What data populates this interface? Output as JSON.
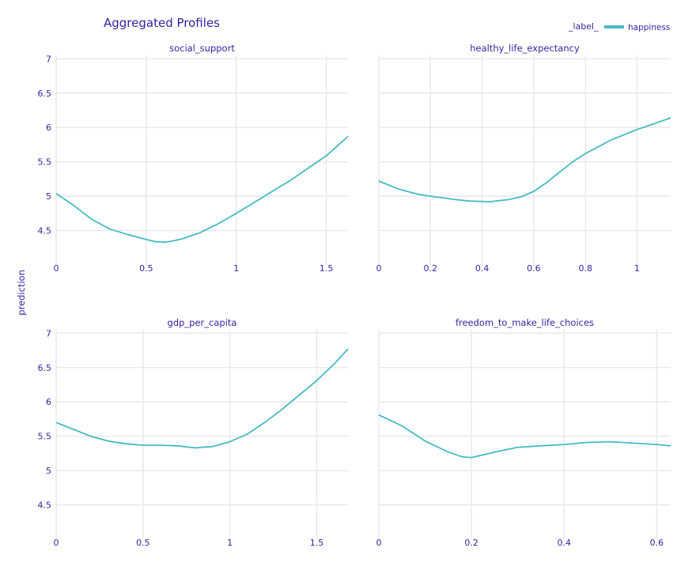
{
  "chart_data": {
    "type": "line",
    "title": "Aggregated Profiles",
    "ylabel": "prediction",
    "ylim": [
      4.0,
      7.05
    ],
    "yticks": [
      4.5,
      5,
      5.5,
      6,
      6.5,
      7
    ],
    "grid": true,
    "legend": {
      "title": "_label_",
      "placement": "top-right",
      "entries": [
        {
          "name": "happiness",
          "color": "#46bac2"
        }
      ]
    },
    "line_color": "#46bac2",
    "subplots": [
      {
        "title": "social_support",
        "xlim": [
          0,
          1.62
        ],
        "xticks": [
          0,
          0.5,
          1,
          1.5
        ],
        "x": [
          0,
          0.1,
          0.2,
          0.3,
          0.4,
          0.5,
          0.55,
          0.6,
          0.65,
          0.7,
          0.8,
          0.9,
          1.0,
          1.1,
          1.2,
          1.3,
          1.4,
          1.5,
          1.62
        ],
        "y": [
          5.04,
          4.86,
          4.66,
          4.52,
          4.44,
          4.37,
          4.34,
          4.33,
          4.35,
          4.38,
          4.47,
          4.6,
          4.75,
          4.91,
          5.07,
          5.23,
          5.41,
          5.59,
          5.87
        ]
      },
      {
        "title": "healthy_life_expectancy",
        "xlim": [
          0,
          1.13
        ],
        "xticks": [
          0,
          0.2,
          0.4,
          0.6,
          0.8,
          1
        ],
        "x": [
          0,
          0.08,
          0.15,
          0.2,
          0.3,
          0.35,
          0.43,
          0.5,
          0.55,
          0.6,
          0.65,
          0.7,
          0.75,
          0.8,
          0.9,
          1.0,
          1.13
        ],
        "y": [
          5.22,
          5.1,
          5.03,
          5.0,
          4.95,
          4.93,
          4.92,
          4.95,
          4.99,
          5.07,
          5.2,
          5.35,
          5.5,
          5.62,
          5.82,
          5.97,
          6.14
        ]
      },
      {
        "title": "gdp_per_capita",
        "xlim": [
          0,
          1.68
        ],
        "xticks": [
          0,
          0.5,
          1,
          1.5
        ],
        "x": [
          0,
          0.1,
          0.2,
          0.3,
          0.4,
          0.5,
          0.6,
          0.7,
          0.8,
          0.9,
          1.0,
          1.1,
          1.2,
          1.3,
          1.4,
          1.5,
          1.6,
          1.68
        ],
        "y": [
          5.7,
          5.6,
          5.5,
          5.43,
          5.39,
          5.37,
          5.37,
          5.36,
          5.33,
          5.35,
          5.42,
          5.53,
          5.7,
          5.89,
          6.1,
          6.31,
          6.55,
          6.77
        ]
      },
      {
        "title": "freedom_to_make_life_choices",
        "xlim": [
          0,
          0.63
        ],
        "xticks": [
          0,
          0.2,
          0.4,
          0.6
        ],
        "x": [
          0,
          0.05,
          0.1,
          0.15,
          0.18,
          0.2,
          0.25,
          0.3,
          0.35,
          0.4,
          0.45,
          0.5,
          0.55,
          0.6,
          0.63
        ],
        "y": [
          5.81,
          5.65,
          5.43,
          5.27,
          5.2,
          5.19,
          5.27,
          5.34,
          5.36,
          5.38,
          5.41,
          5.42,
          5.4,
          5.38,
          5.36
        ]
      }
    ]
  }
}
